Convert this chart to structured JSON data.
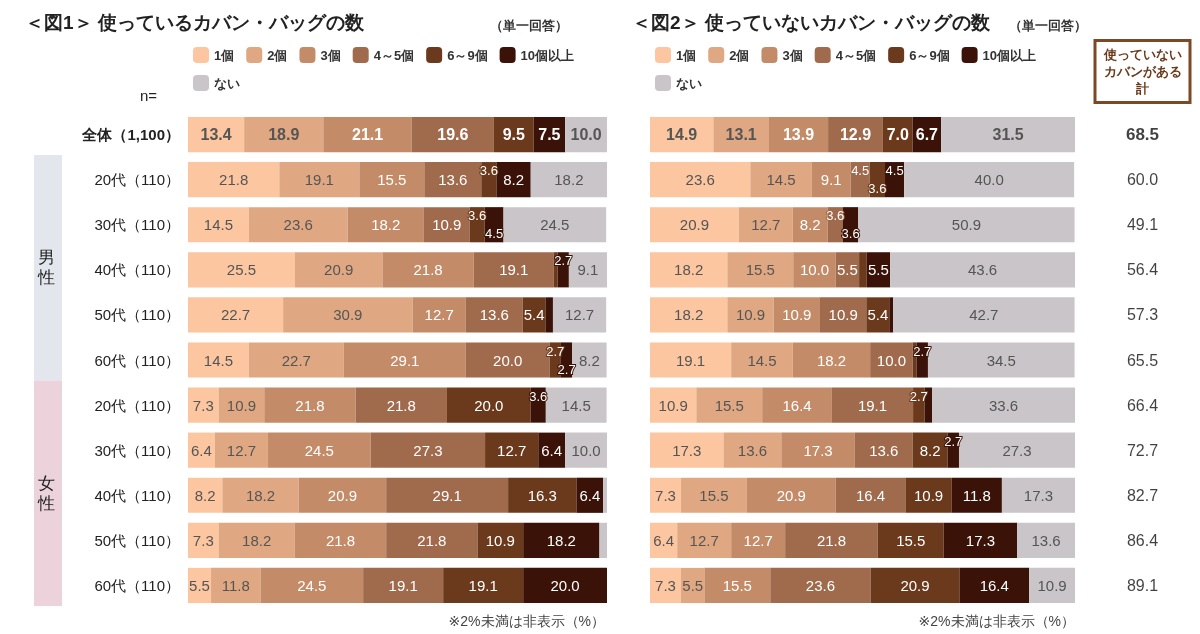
{
  "chart_data": [
    {
      "type": "bar",
      "orientation": "horizontal",
      "stacked": true,
      "title": "＜図1＞ 使っているカバン・バッグの数",
      "subtitle": "（単一回答）",
      "categories": [
        "全体（1,100）",
        "20代（110）",
        "30代（110）",
        "40代（110）",
        "50代（110）",
        "60代（110）",
        "20代（110）",
        "30代（110）",
        "40代（110）",
        "50代（110）",
        "60代（110）"
      ],
      "xlim": [
        0,
        100
      ],
      "tick_labels": "y",
      "legend": "top",
      "annotations": [
        "n=",
        "男性",
        "女性",
        "※2%未満は非表示（%）"
      ],
      "series": [
        {
          "name": "1個",
          "color": "#fbc6a0",
          "values": [
            13.4,
            21.8,
            14.5,
            25.5,
            22.7,
            14.5,
            7.3,
            6.4,
            8.2,
            7.3,
            5.5
          ],
          "value_labels": [
            "13.4",
            "21.8",
            "14.5",
            "25.5",
            "22.7",
            "14.5",
            "7.3",
            "6.4",
            "8.2",
            "7.3",
            "5.5"
          ]
        },
        {
          "name": "2個",
          "color": "#e0a882",
          "values": [
            18.9,
            19.1,
            23.6,
            20.9,
            30.9,
            22.7,
            10.9,
            12.7,
            18.2,
            18.2,
            11.8
          ],
          "value_labels": [
            "18.9",
            "19.1",
            "23.6",
            "20.9",
            "30.9",
            "22.7",
            "10.9",
            "12.7",
            "18.2",
            "18.2",
            "11.8"
          ]
        },
        {
          "name": "3個",
          "color": "#c48b68",
          "values": [
            21.1,
            15.5,
            18.2,
            21.8,
            12.7,
            29.1,
            21.8,
            24.5,
            20.9,
            21.8,
            24.5
          ],
          "value_labels": [
            "21.1",
            "15.5",
            "18.2",
            "21.8",
            "12.7",
            "29.1",
            "21.8",
            "24.5",
            "20.9",
            "21.8",
            "24.5"
          ]
        },
        {
          "name": "4～5個",
          "color": "#a06a4c",
          "values": [
            19.6,
            13.6,
            10.9,
            19.1,
            13.6,
            20.0,
            21.8,
            27.3,
            29.1,
            21.8,
            19.1
          ],
          "value_labels": [
            "19.6",
            "13.6",
            "10.9",
            "19.1",
            "13.6",
            "20.0",
            "21.8",
            "27.3",
            "29.1",
            "21.8",
            "19.1"
          ]
        },
        {
          "name": "6～9個",
          "color": "#6b3a1c",
          "values": [
            9.5,
            3.6,
            3.6,
            0.9,
            5.4,
            2.7,
            20.0,
            12.7,
            16.3,
            10.9,
            19.1
          ],
          "value_labels": [
            "9.5",
            "3.6",
            "3.6",
            null,
            "5.4",
            "2.7",
            "20.0",
            "12.7",
            "16.3",
            "10.9",
            "19.1"
          ]
        },
        {
          "name": "10個以上",
          "color": "#3a1208",
          "values": [
            7.5,
            8.2,
            4.5,
            2.7,
            1.8,
            2.7,
            3.6,
            6.4,
            6.4,
            18.2,
            20.0
          ],
          "value_labels": [
            "7.5",
            "8.2",
            "4.5",
            "2.7",
            null,
            "2.7",
            "3.6",
            "6.4",
            "6.4",
            "18.2",
            "20.0"
          ]
        },
        {
          "name": "ない",
          "color": "#c9c5c8",
          "values": [
            10.0,
            18.2,
            24.5,
            9.1,
            12.7,
            8.2,
            14.5,
            10.0,
            0.9,
            1.8,
            null
          ],
          "value_labels": [
            "10.0",
            "18.2",
            "24.5",
            "9.1",
            "12.7",
            "8.2",
            "14.5",
            "10.0",
            null,
            null,
            null
          ]
        }
      ]
    },
    {
      "type": "bar",
      "orientation": "horizontal",
      "stacked": true,
      "title": "＜図2＞ 使っていないカバン・バッグの数",
      "subtitle": "（単一回答）",
      "categories": [
        null,
        null,
        null,
        null,
        null,
        null,
        null,
        null,
        null,
        null,
        null
      ],
      "xlim": [
        0,
        100
      ],
      "tick_labels": false,
      "legend": "top",
      "annotations": [
        "※2%未満は非表示（%）"
      ],
      "series": [
        {
          "name": "1個",
          "color": "#fbc6a0",
          "values": [
            14.9,
            23.6,
            20.9,
            18.2,
            18.2,
            19.1,
            10.9,
            17.3,
            7.3,
            6.4,
            7.3
          ],
          "value_labels": [
            "14.9",
            "23.6",
            "20.9",
            "18.2",
            "18.2",
            "19.1",
            "10.9",
            "17.3",
            "7.3",
            "6.4",
            "7.3"
          ]
        },
        {
          "name": "2個",
          "color": "#e0a882",
          "values": [
            13.1,
            14.5,
            12.7,
            15.5,
            10.9,
            14.5,
            15.5,
            13.6,
            15.5,
            12.7,
            5.5
          ],
          "value_labels": [
            "13.1",
            "14.5",
            "12.7",
            "15.5",
            "10.9",
            "14.5",
            "15.5",
            "13.6",
            "15.5",
            "12.7",
            "5.5"
          ]
        },
        {
          "name": "3個",
          "color": "#c48b68",
          "values": [
            13.9,
            9.1,
            8.2,
            10.0,
            10.9,
            18.2,
            16.4,
            17.3,
            20.9,
            12.7,
            15.5
          ],
          "value_labels": [
            "13.9",
            "9.1",
            "8.2",
            "10.0",
            "10.9",
            "18.2",
            "16.4",
            "17.3",
            "20.9",
            "12.7",
            "15.5"
          ]
        },
        {
          "name": "4～5個",
          "color": "#a06a4c",
          "values": [
            12.9,
            4.5,
            3.6,
            5.5,
            10.9,
            10.0,
            19.1,
            13.6,
            16.4,
            21.8,
            23.6
          ],
          "value_labels": [
            "12.9",
            "4.5",
            "3.6",
            "5.5",
            "10.9",
            "10.0",
            "19.1",
            "13.6",
            "16.4",
            "21.8",
            "23.6"
          ]
        },
        {
          "name": "6～9個",
          "color": "#6b3a1c",
          "values": [
            7.0,
            3.6,
            null,
            1.8,
            5.4,
            0.9,
            2.7,
            8.2,
            10.9,
            15.5,
            20.9
          ],
          "value_labels": [
            "7.0",
            "3.6",
            null,
            null,
            "5.4",
            null,
            "2.7",
            "8.2",
            "10.9",
            "15.5",
            "20.9"
          ]
        },
        {
          "name": "10個以上",
          "color": "#3a1208",
          "values": [
            6.7,
            4.5,
            3.6,
            5.5,
            0.9,
            2.7,
            1.8,
            2.7,
            11.8,
            17.3,
            16.4
          ],
          "value_labels": [
            "6.7",
            "4.5",
            "3.6",
            "5.5",
            null,
            "2.7",
            null,
            "2.7",
            "11.8",
            "17.3",
            "16.4"
          ]
        },
        {
          "name": "ない",
          "color": "#c9c5c8",
          "values": [
            31.5,
            40.0,
            50.9,
            43.6,
            42.7,
            34.5,
            33.6,
            27.3,
            17.3,
            13.6,
            10.9
          ],
          "value_labels": [
            "31.5",
            "40.0",
            "50.9",
            "43.6",
            "42.7",
            "34.5",
            "33.6",
            "27.3",
            "17.3",
            "13.6",
            "10.9"
          ]
        }
      ]
    },
    {
      "type": "other",
      "title": "使っていないカバンがある計",
      "categories": [
        null,
        null,
        null,
        null,
        null,
        null,
        null,
        null,
        null,
        null,
        null
      ],
      "values": [
        68.5,
        60.0,
        49.1,
        56.4,
        57.3,
        65.5,
        66.4,
        72.7,
        82.7,
        86.4,
        89.1
      ],
      "value_labels": [
        "68.5",
        "60.0",
        "49.1",
        "56.4",
        "57.3",
        "65.5",
        "66.4",
        "72.7",
        "82.7",
        "86.4",
        "89.1"
      ]
    }
  ]
}
